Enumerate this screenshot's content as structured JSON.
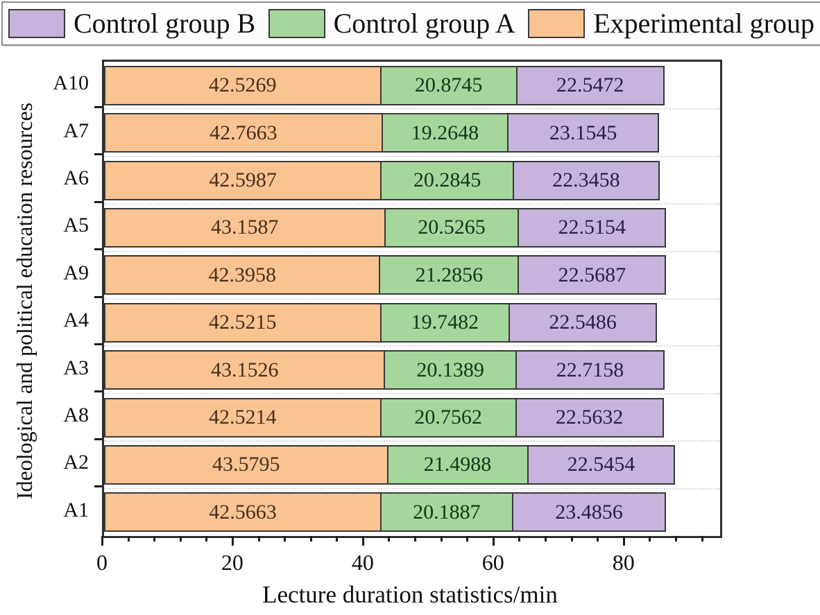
{
  "legend": {
    "items": [
      {
        "label": "Control group B",
        "color": "#c6b4dc"
      },
      {
        "label": "Control group A",
        "color": "#a5d69c"
      },
      {
        "label": "Experimental group",
        "color": "#fac392"
      }
    ]
  },
  "chart_data": {
    "type": "bar",
    "orientation": "horizontal-stacked",
    "xlabel": "Lecture duration statistics/min",
    "ylabel": "Ideological and political education resources",
    "categories_top_to_bottom": [
      "A10",
      "A7",
      "A6",
      "A5",
      "A9",
      "A4",
      "A3",
      "A8",
      "A2",
      "A1"
    ],
    "series": [
      {
        "name": "Experimental group",
        "color": "#fac392",
        "label_color": "#46301d",
        "values": [
          42.5269,
          42.7663,
          42.5987,
          43.1587,
          42.3958,
          42.5215,
          43.1526,
          42.5214,
          43.5795,
          42.5663
        ]
      },
      {
        "name": "Control group A",
        "color": "#a5d69c",
        "label_color": "#16351c",
        "values": [
          20.8745,
          19.2648,
          20.2845,
          20.5265,
          21.2856,
          19.7482,
          20.1389,
          20.7562,
          21.4988,
          20.1887
        ]
      },
      {
        "name": "Control group B",
        "color": "#c6b4dc",
        "label_color": "#281e45",
        "values": [
          22.5472,
          23.1545,
          22.3458,
          22.5154,
          22.5687,
          22.5486,
          22.7158,
          22.5632,
          22.5454,
          23.4856
        ]
      }
    ],
    "x_ticks": [
      0,
      20,
      40,
      60,
      80
    ],
    "x_minor_step": 4,
    "xlim": [
      0,
      94.5
    ],
    "value_decimals": 4,
    "grid": "dashed horizontal between categories",
    "legend_position": "top"
  }
}
